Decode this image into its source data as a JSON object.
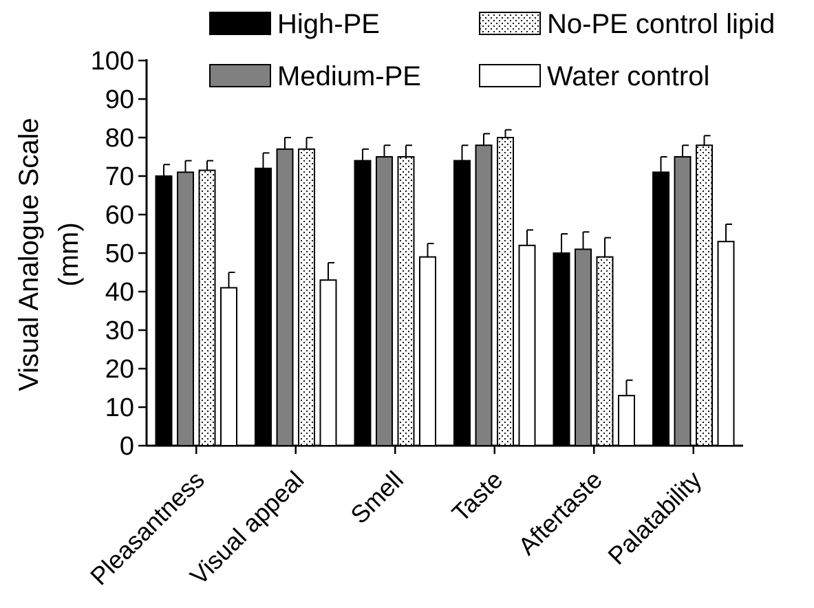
{
  "chart_data": {
    "type": "bar",
    "ylabel_line1": "Visual Analogue Scale",
    "ylabel_line2": "(mm)",
    "xlabel": "",
    "ylim": [
      0,
      100
    ],
    "y_ticks": [
      0,
      10,
      20,
      30,
      40,
      50,
      60,
      70,
      80,
      90,
      100
    ],
    "categories": [
      "Pleasantness",
      "Visual appeal",
      "Smell",
      "Taste",
      "Aftertaste",
      "Palatability"
    ],
    "legend_position": "top",
    "series": [
      {
        "name": "High-PE",
        "fill": "#000000",
        "pattern": "solid",
        "values": [
          70,
          72,
          74,
          74,
          50,
          71
        ],
        "errors": [
          3,
          4,
          3,
          4,
          5,
          4
        ]
      },
      {
        "name": "Medium-PE",
        "fill": "#808080",
        "pattern": "solid",
        "values": [
          71,
          77,
          75,
          78,
          51,
          75
        ],
        "errors": [
          3,
          3,
          3,
          3,
          4.5,
          3
        ]
      },
      {
        "name": "No-PE control lipid",
        "fill": "#ffffff",
        "pattern": "dots",
        "values": [
          71.5,
          77,
          75,
          80,
          49,
          78
        ],
        "errors": [
          2.5,
          3,
          3,
          2,
          5,
          2.5
        ]
      },
      {
        "name": "Water control",
        "fill": "#ffffff",
        "pattern": "solid",
        "values": [
          41,
          43,
          49,
          52,
          13,
          53
        ],
        "errors": [
          4,
          4.5,
          3.5,
          4,
          4,
          4.5
        ]
      }
    ]
  }
}
